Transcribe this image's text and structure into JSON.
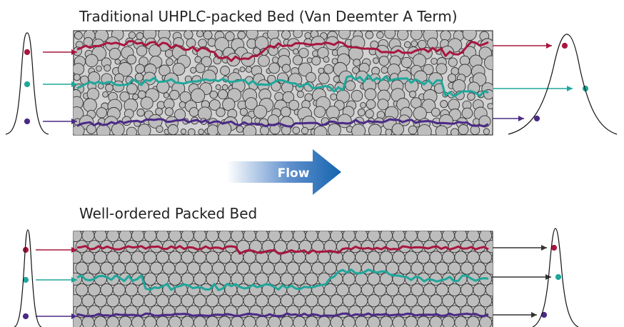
{
  "diagram": {
    "top_title": "Traditional UHPLC-packed Bed (Van Deemter A Term)",
    "flow_label": "Flow",
    "bottom_title": "Well-ordered Packed Bed"
  },
  "colors": {
    "red_path": "#a8163f",
    "teal_path": "#1fa79b",
    "purple_path": "#4b2a86",
    "bed_fill": "#d3d3d3",
    "particle_fill": "#bdbdbd",
    "arrow_blue": "#1565b0"
  }
}
